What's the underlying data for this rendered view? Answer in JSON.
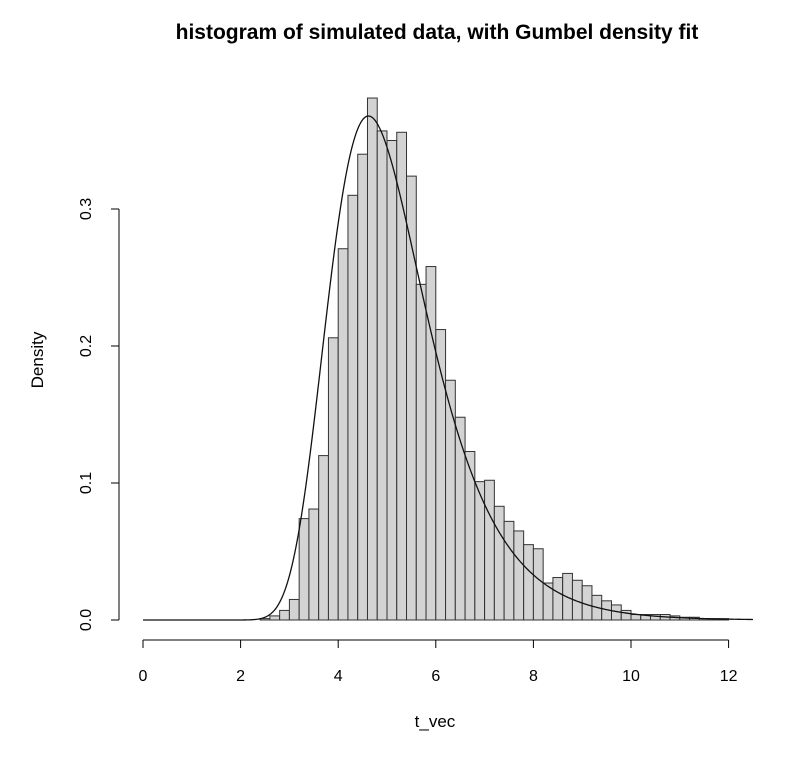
{
  "chart_data": {
    "type": "bar",
    "title": "histogram of simulated data, with Gumbel density fit",
    "xlabel": "t_vec",
    "ylabel": "Density",
    "xlim": [
      0,
      12.5
    ],
    "ylim": [
      0,
      0.38
    ],
    "x_ticks": [
      0,
      2,
      4,
      6,
      8,
      10,
      12
    ],
    "y_ticks": [
      0.0,
      0.1,
      0.2,
      0.3
    ],
    "x_tick_labels": [
      "0",
      "2",
      "4",
      "6",
      "8",
      "10",
      "12"
    ],
    "y_tick_labels": [
      "0.0",
      "0.1",
      "0.2",
      "0.3"
    ],
    "grid": false,
    "bin_width": 0.2,
    "bin_start": 0,
    "values": [
      0,
      0,
      0,
      0,
      0,
      0,
      0,
      0,
      0,
      0,
      0,
      0,
      0.001,
      0.003,
      0.007,
      0.015,
      0.074,
      0.081,
      0.12,
      0.206,
      0.271,
      0.31,
      0.34,
      0.381,
      0.357,
      0.35,
      0.356,
      0.324,
      0.245,
      0.258,
      0.212,
      0.175,
      0.148,
      0.123,
      0.101,
      0.102,
      0.083,
      0.072,
      0.065,
      0.055,
      0.052,
      0.027,
      0.031,
      0.034,
      0.029,
      0.025,
      0.018,
      0.014,
      0.011,
      0.007,
      0.004,
      0.004,
      0.004,
      0.004,
      0.003,
      0.002,
      0.002,
      0.001,
      0.001,
      0.001
    ],
    "density_fit": {
      "distribution": "Gumbel",
      "location": 4.62,
      "scale": 1.0
    }
  }
}
